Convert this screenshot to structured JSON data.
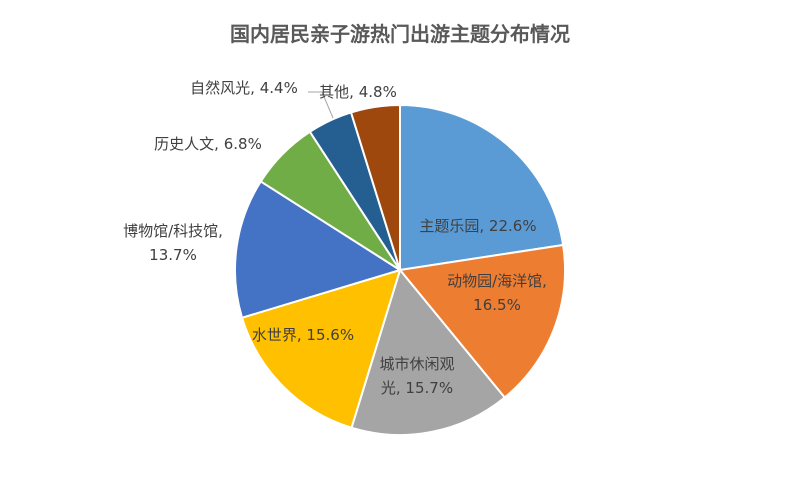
{
  "chart_data": {
    "type": "pie",
    "title": "国内居民亲子游热门出游主题分布情况",
    "slices": [
      {
        "name": "主题乐园",
        "value": 22.6,
        "color": "#5B9BD5",
        "label_lines": [
          "主题乐园, 22.6%"
        ]
      },
      {
        "name": "动物园/海洋馆",
        "value": 16.5,
        "color": "#ED7D31",
        "label_lines": [
          "动物园/海洋馆,",
          "16.5%"
        ]
      },
      {
        "name": "城市休闲观光",
        "value": 15.7,
        "color": "#A5A5A5",
        "label_lines": [
          "城市休闲观",
          "光, 15.7%"
        ]
      },
      {
        "name": "水世界",
        "value": 15.6,
        "color": "#FFC000",
        "label_lines": [
          "水世界, 15.6%"
        ]
      },
      {
        "name": "博物馆/科技馆",
        "value": 13.7,
        "color": "#4472C4",
        "label_lines": [
          "博物馆/科技馆,",
          "13.7%"
        ]
      },
      {
        "name": "历史人文",
        "value": 6.8,
        "color": "#70AD47",
        "label_lines": [
          "历史人文, 6.8%"
        ]
      },
      {
        "name": "自然风光",
        "value": 4.4,
        "color": "#255E91",
        "label_lines": [
          "自然风光, 4.4%"
        ]
      },
      {
        "name": "其他",
        "value": 4.8,
        "color": "#9E480E",
        "label_lines": [
          "其他, 4.8%"
        ]
      }
    ],
    "legend": "none"
  }
}
